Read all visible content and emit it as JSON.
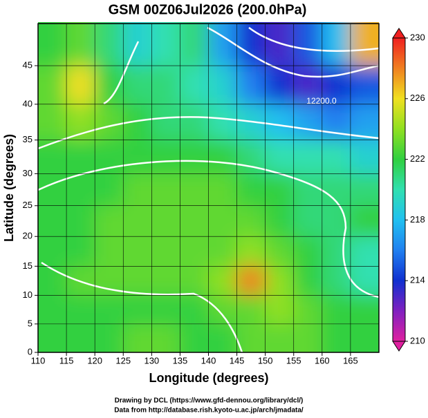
{
  "chart_data": {
    "type": "map",
    "title": "GSM 00Z06Jul2026 (200.0hPa)",
    "x_label": "Longitude (degrees)",
    "y_label": "Latitude  (degrees)",
    "projection": "mercator",
    "xlim": [
      110,
      170
    ],
    "ylim": [
      0,
      50
    ],
    "xticks": [
      110,
      115,
      120,
      125,
      130,
      135,
      140,
      145,
      150,
      155,
      160,
      165
    ],
    "yticks": [
      0,
      5,
      10,
      15,
      20,
      25,
      30,
      35,
      40,
      45
    ],
    "grid": true,
    "z": [
      [
        222,
        223,
        221,
        219,
        220,
        221,
        217,
        214,
        213,
        215,
        218,
        227
      ],
      [
        223,
        226,
        222,
        221,
        221,
        220,
        219,
        216,
        214,
        213,
        214,
        215
      ],
      [
        223,
        224,
        223,
        222,
        221,
        221,
        220,
        219,
        218,
        217,
        216,
        217
      ],
      [
        222,
        222,
        222,
        222,
        222,
        222,
        222,
        221,
        220,
        220,
        220,
        219
      ],
      [
        222,
        222,
        222,
        223,
        223,
        223,
        223,
        222,
        222,
        221,
        221,
        221
      ],
      [
        222,
        222,
        223,
        223,
        223,
        223,
        223,
        223,
        222,
        221,
        221,
        222
      ],
      [
        222,
        222,
        223,
        223,
        223,
        223,
        223,
        224,
        223,
        222,
        221,
        220
      ],
      [
        222,
        223,
        223,
        223,
        223,
        223,
        224,
        228,
        224,
        222,
        221,
        220
      ],
      [
        222,
        222,
        222,
        222,
        222,
        222,
        223,
        223,
        224,
        223,
        222,
        222
      ],
      [
        222,
        222,
        222,
        223,
        223,
        222,
        222,
        223,
        223,
        223,
        222,
        222
      ]
    ],
    "contour_label": "12200.0",
    "colorbar": {
      "lim": [
        210,
        230
      ],
      "ticks": [
        210,
        214,
        218,
        222,
        226,
        230
      ],
      "colors": [
        "#e020a0",
        "#8020c0",
        "#1030d0",
        "#2080f0",
        "#20c0f0",
        "#30e0b0",
        "#30d040",
        "#90e020",
        "#f0e020",
        "#f08020",
        "#f02020"
      ]
    },
    "credits": [
      "Drawing by DCL (https://www.gfd-dennou.org/library/dcl/)",
      "Data from http://database.rish.kyoto-u.ac.jp/arch/jmadata/"
    ]
  }
}
